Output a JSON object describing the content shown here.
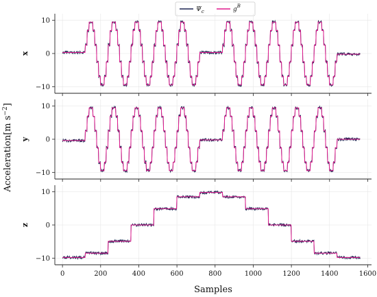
{
  "chart_data": {
    "type": "line",
    "xlabel": "Samples",
    "ylabel": "Acceleration",
    "ylabel_unit": "[m s",
    "ylabel_exp": "−2",
    "ylabel_close": "]",
    "xlim": [
      -40,
      1620
    ],
    "ylim": [
      -12,
      12
    ],
    "x_ticks": [
      0,
      200,
      400,
      600,
      800,
      1000,
      1200,
      1400,
      1600
    ],
    "x_tick_labels": [
      "0",
      "200",
      "400",
      "600",
      "800",
      "1000",
      "1200",
      "1400",
      "1600"
    ],
    "y_ticks": [
      -10,
      0,
      10
    ],
    "y_tick_labels": [
      "−10",
      "0",
      "10"
    ],
    "grid": true,
    "legend_placement": "top-center",
    "n_samples": 1560,
    "series": [
      {
        "name": "Ψ",
        "subscript": "c",
        "color": "#1b2450"
      },
      {
        "name": "g",
        "superscript": "B",
        "color": "#e0188c"
      }
    ],
    "panels": [
      {
        "label": "x",
        "segments": [
          {
            "x_start": 0,
            "x_end": 120,
            "amplitude": 0,
            "period": 1,
            "offset": 0.3
          },
          {
            "x_start": 120,
            "x_end": 720,
            "amplitude": 9.8,
            "period": 120,
            "offset": 0
          },
          {
            "x_start": 720,
            "x_end": 840,
            "amplitude": 0,
            "period": 1,
            "offset": 0.3
          },
          {
            "x_start": 840,
            "x_end": 1440,
            "amplitude": 9.8,
            "period": 120,
            "offset": 0
          },
          {
            "x_start": 1440,
            "x_end": 1560,
            "amplitude": 0,
            "period": 1,
            "offset": -0.2
          }
        ]
      },
      {
        "label": "y",
        "segments": [
          {
            "x_start": 0,
            "x_end": 120,
            "amplitude": 0,
            "period": 1,
            "offset": -0.4
          },
          {
            "x_start": 120,
            "x_end": 720,
            "amplitude": 9.8,
            "period": 120,
            "offset": 0
          },
          {
            "x_start": 720,
            "x_end": 840,
            "amplitude": 0,
            "period": 1,
            "offset": -0.2
          },
          {
            "x_start": 840,
            "x_end": 1440,
            "amplitude": 9.8,
            "period": 120,
            "offset": 0
          },
          {
            "x_start": 1440,
            "x_end": 1560,
            "amplitude": 0,
            "period": 1,
            "offset": 0
          }
        ]
      },
      {
        "label": "z",
        "steps": [
          {
            "x_start": 0,
            "x_end": 120,
            "value": -9.8
          },
          {
            "x_start": 120,
            "x_end": 240,
            "value": -8.5
          },
          {
            "x_start": 240,
            "x_end": 360,
            "value": -4.9
          },
          {
            "x_start": 360,
            "x_end": 480,
            "value": 0
          },
          {
            "x_start": 480,
            "x_end": 600,
            "value": 4.9
          },
          {
            "x_start": 600,
            "x_end": 720,
            "value": 8.5
          },
          {
            "x_start": 720,
            "x_end": 840,
            "value": 9.8
          },
          {
            "x_start": 840,
            "x_end": 960,
            "value": 8.5
          },
          {
            "x_start": 960,
            "x_end": 1080,
            "value": 4.9
          },
          {
            "x_start": 1080,
            "x_end": 1200,
            "value": 0
          },
          {
            "x_start": 1200,
            "x_end": 1320,
            "value": -4.9
          },
          {
            "x_start": 1320,
            "x_end": 1440,
            "value": -8.5
          },
          {
            "x_start": 1440,
            "x_end": 1560,
            "value": -9.8
          }
        ]
      }
    ]
  }
}
